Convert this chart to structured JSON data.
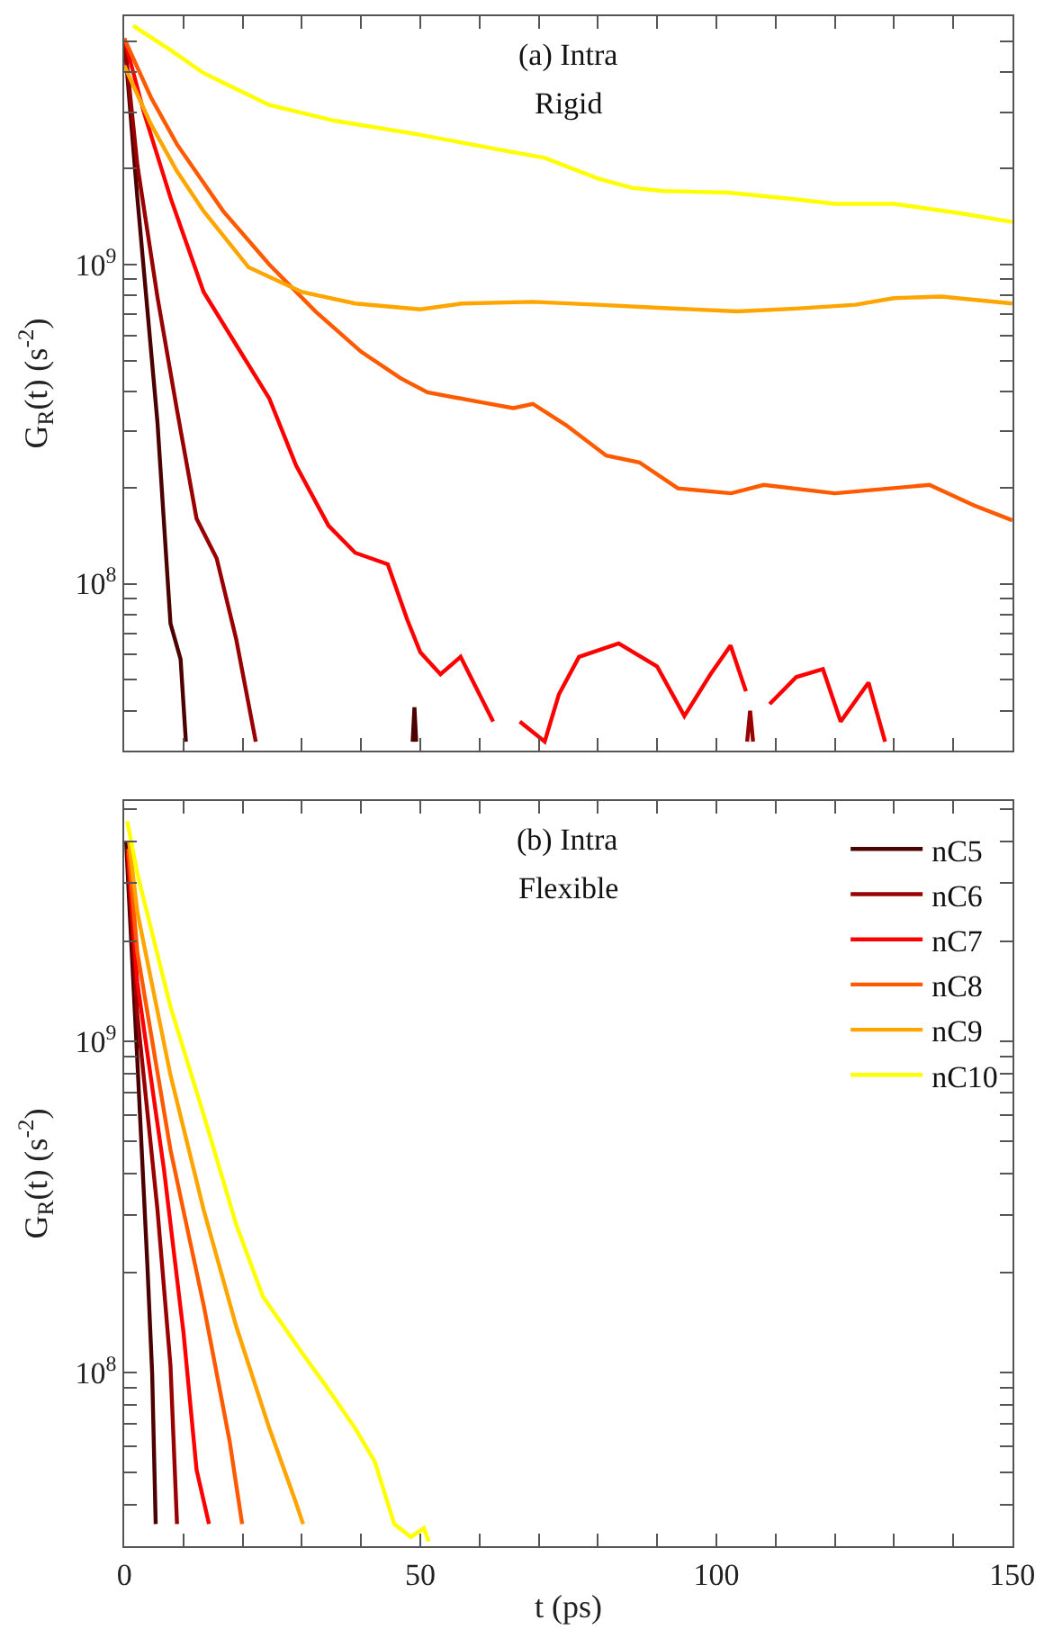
{
  "chart_data": [
    {
      "type": "line",
      "ylabel": "G$_{R}$(t) (s$^{-2}$)",
      "annotations": [
        "(a) Intra",
        "Rigid"
      ],
      "log": "y",
      "tick_labels": "y",
      "xlim": [
        0,
        150
      ],
      "ylim": [
        30000000.0,
        6000000000.0
      ],
      "xticks": [
        0,
        {
          "value": 10,
          "label": null
        },
        {
          "value": 20,
          "label": null
        },
        {
          "value": 30,
          "label": null
        },
        {
          "value": 40,
          "label": null
        },
        50,
        {
          "value": 60,
          "label": null
        },
        {
          "value": 70,
          "label": null
        },
        {
          "value": 80,
          "label": null
        },
        {
          "value": 90,
          "label": null
        },
        100,
        {
          "value": 110,
          "label": null
        },
        {
          "value": 120,
          "label": null
        },
        {
          "value": 130,
          "label": null
        },
        {
          "value": 140,
          "label": null
        },
        150
      ],
      "yticks": [
        {
          "value": 40000000.0,
          "label": null
        },
        {
          "value": 50000000.0,
          "label": null
        },
        {
          "value": 60000000.0,
          "label": null
        },
        {
          "value": 70000000.0,
          "label": null
        },
        {
          "value": 80000000.0,
          "label": null
        },
        {
          "value": 90000000.0,
          "label": null
        },
        {
          "value": 100000000.0,
          "label": "10$^{8}$"
        },
        {
          "value": 200000000.0,
          "label": null
        },
        {
          "value": 300000000.0,
          "label": null
        },
        {
          "value": 400000000.0,
          "label": null
        },
        {
          "value": 500000000.0,
          "label": null
        },
        {
          "value": 600000000.0,
          "label": null
        },
        {
          "value": 700000000.0,
          "label": null
        },
        {
          "value": 800000000.0,
          "label": null
        },
        {
          "value": 900000000.0,
          "label": null
        },
        {
          "value": 1000000000.0,
          "label": "10$^{9}$"
        },
        {
          "value": 2000000000.0,
          "label": null
        },
        {
          "value": 3000000000.0,
          "label": null
        },
        {
          "value": 4000000000.0,
          "label": null
        },
        {
          "value": 5000000000.0,
          "label": null
        }
      ],
      "series": [
        {
          "color": "#4d0000",
          "x": [
            0,
            2.2,
            5.6,
            7.8,
            9.5,
            10.4,
            30,
            48.7,
            49,
            49.3
          ],
          "values": [
            5100000000.0,
            1620000000.0,
            320000000.0,
            75000000.0,
            58000000.0,
            32000000.0,
            null,
            32000000.0,
            41000000.0,
            32000000.0
          ]
        },
        {
          "color": "#990000",
          "x": [
            0,
            2.2,
            5.6,
            8.9,
            12.2,
            15.6,
            18.9,
            22.2,
            60,
            105.2,
            105.7,
            106.2
          ],
          "values": [
            5100000000.0,
            2050000000.0,
            790000000.0,
            350000000.0,
            160000000.0,
            120000000.0,
            67000000.0,
            32000000.0,
            null,
            32000000.0,
            40000000.0,
            32000000.0
          ]
        },
        {
          "color": "#ff0000",
          "x": [
            0,
            3.3,
            7.8,
            13.4,
            18.9,
            24.5,
            29,
            34.5,
            39,
            44.5,
            47.8,
            50,
            53.4,
            56.8,
            62.3,
            64.5,
            66.8,
            71,
            73.4,
            76.8,
            83.5,
            90,
            94.6,
            99,
            102.4,
            105,
            106,
            107,
            108,
            109,
            113.5,
            118,
            121,
            125.7,
            128.5
          ],
          "values": [
            5100000000.0,
            3000000000.0,
            1620000000.0,
            820000000.0,
            560000000.0,
            380000000.0,
            235000000.0,
            152000000.0,
            125000000.0,
            115000000.0,
            77000000.0,
            61000000.0,
            52000000.0,
            59000000.0,
            37000000.0,
            null,
            37000000.0,
            32000000.0,
            45000000.0,
            59000000.0,
            65000000.0,
            55000000.0,
            38500000.0,
            52000000.0,
            64000000.0,
            46000000.0,
            null,
            null,
            null,
            42000000.0,
            51000000.0,
            54000000.0,
            37000000.0,
            49000000.0,
            32000000.0
          ]
        },
        {
          "color": "#ff5a00",
          "x": [
            0,
            4.5,
            8.9,
            16.7,
            24.5,
            32.3,
            40,
            46.7,
            51.2,
            60,
            65.7,
            69,
            74.6,
            81.4,
            87,
            93.5,
            102.5,
            108,
            120,
            136,
            143.5,
            150
          ],
          "values": [
            5100000000.0,
            3340000000.0,
            2380000000.0,
            1470000000.0,
            1000000000.0,
            713000000.0,
            533000000.0,
            440000000.0,
            398000000.0,
            371000000.0,
            355000000.0,
            366000000.0,
            314000000.0,
            252000000.0,
            240000000.0,
            199000000.0,
            192000000.0,
            204000000.0,
            192000000.0,
            204000000.0,
            176000000.0,
            158000000.0
          ]
        },
        {
          "color": "#ffa500",
          "x": [
            0,
            4.5,
            8.9,
            13.4,
            21,
            30,
            39,
            50,
            57,
            69,
            80,
            91,
            103.5,
            113.5,
            123.5,
            130,
            138,
            150
          ],
          "values": [
            4200000000.0,
            2750000000.0,
            1960000000.0,
            1470000000.0,
            980000000.0,
            820000000.0,
            755000000.0,
            724000000.0,
            755000000.0,
            764000000.0,
            748000000.0,
            731000000.0,
            713000000.0,
            728000000.0,
            748000000.0,
            785000000.0,
            794000000.0,
            755000000.0
          ]
        },
        {
          "color": "#ffff00",
          "x": [
            1.5,
            7.8,
            13.4,
            24.5,
            35.6,
            49,
            63.4,
            71,
            80,
            85.7,
            91,
            102,
            113.5,
            120,
            130,
            141,
            150
          ],
          "values": [
            5600000000.0,
            4700000000.0,
            3980000000.0,
            3160000000.0,
            2820000000.0,
            2570000000.0,
            2290000000.0,
            2160000000.0,
            1860000000.0,
            1740000000.0,
            1700000000.0,
            1680000000.0,
            1600000000.0,
            1550000000.0,
            1550000000.0,
            1450000000.0,
            1360000000.0
          ]
        }
      ]
    },
    {
      "type": "line",
      "xlabel": "t (ps)",
      "ylabel": "G$_{R}$(t) (s$^{-2}$)",
      "annotations": [
        "(b) Intra",
        "Flexible"
      ],
      "log": "y",
      "legend": "top right",
      "xlim": [
        0,
        150
      ],
      "ylim": [
        30000000.0,
        5300000000.0
      ],
      "xticks": [
        0,
        {
          "value": 10,
          "label": null
        },
        {
          "value": 20,
          "label": null
        },
        {
          "value": 30,
          "label": null
        },
        {
          "value": 40,
          "label": null
        },
        50,
        {
          "value": 60,
          "label": null
        },
        {
          "value": 70,
          "label": null
        },
        {
          "value": 80,
          "label": null
        },
        {
          "value": 90,
          "label": null
        },
        100,
        {
          "value": 110,
          "label": null
        },
        {
          "value": 120,
          "label": null
        },
        {
          "value": 130,
          "label": null
        },
        {
          "value": 140,
          "label": null
        },
        150
      ],
      "yticks": [
        {
          "value": 40000000.0,
          "label": null
        },
        {
          "value": 50000000.0,
          "label": null
        },
        {
          "value": 60000000.0,
          "label": null
        },
        {
          "value": 70000000.0,
          "label": null
        },
        {
          "value": 80000000.0,
          "label": null
        },
        {
          "value": 90000000.0,
          "label": null
        },
        {
          "value": 100000000.0,
          "label": "10$^{8}$"
        },
        {
          "value": 200000000.0,
          "label": null
        },
        {
          "value": 300000000.0,
          "label": null
        },
        {
          "value": 400000000.0,
          "label": null
        },
        {
          "value": 500000000.0,
          "label": null
        },
        {
          "value": 600000000.0,
          "label": null
        },
        {
          "value": 700000000.0,
          "label": null
        },
        {
          "value": 800000000.0,
          "label": null
        },
        {
          "value": 900000000.0,
          "label": null
        },
        {
          "value": 1000000000.0,
          "label": "10$^{9}$"
        },
        {
          "value": 2000000000.0,
          "label": null
        },
        {
          "value": 3000000000.0,
          "label": null
        },
        {
          "value": 4000000000.0,
          "label": null
        },
        {
          "value": 5000000000.0,
          "label": null
        }
      ],
      "series": [
        {
          "name": "nC5",
          "color": "#4d0000",
          "x": [
            0.3,
            2.2,
            3.9,
            4.7,
            5.3
          ],
          "values": [
            4000000000.0,
            870000000.0,
            210000000.0,
            100000000.0,
            35000000.0
          ]
        },
        {
          "name": "nC6",
          "color": "#990000",
          "x": [
            0.5,
            2.2,
            5.6,
            7.8,
            8.9
          ],
          "values": [
            3800000000.0,
            1200000000.0,
            310000000.0,
            105000000.0,
            35000000.0
          ]
        },
        {
          "name": "nC7",
          "color": "#ff0000",
          "x": [
            0.6,
            2.2,
            6.7,
            10,
            12.2,
            14.3
          ],
          "values": [
            3700000000.0,
            1500000000.0,
            410000000.0,
            132000000.0,
            51000000.0,
            35000000.0
          ]
        },
        {
          "name": "nC8",
          "color": "#ff5a00",
          "x": [
            0.7,
            2.2,
            7.8,
            13.4,
            17.8,
            19.9
          ],
          "values": [
            3800000000.0,
            1850000000.0,
            470000000.0,
            160000000.0,
            62000000.0,
            35000000.0
          ]
        },
        {
          "name": "nC9",
          "color": "#ffa500",
          "x": [
            0.8,
            2.2,
            7.8,
            13.4,
            18.9,
            24.5,
            28.9,
            30.2
          ],
          "values": [
            4000000000.0,
            2450000000.0,
            790000000.0,
            310000000.0,
            138000000.0,
            68000000.0,
            41000000.0,
            35000000.0
          ]
        },
        {
          "name": "nC10",
          "color": "#ffff00",
          "x": [
            0.5,
            2.2,
            7.8,
            13.4,
            18.9,
            23.4,
            30,
            34.5,
            39,
            42.3,
            45.6,
            48.4,
            50.6,
            51.4
          ],
          "values": [
            4600000000.0,
            3200000000.0,
            1270000000.0,
            600000000.0,
            280000000.0,
            170000000.0,
            115000000.0,
            89000000.0,
            68000000.0,
            54000000.0,
            35000000.0,
            32000000.0,
            34000000.0,
            31000000.0
          ]
        }
      ]
    }
  ]
}
